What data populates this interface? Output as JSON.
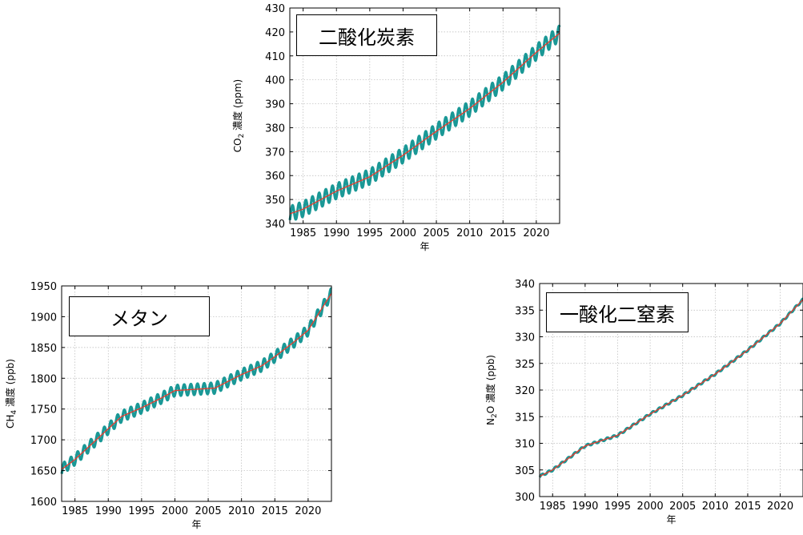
{
  "colors": {
    "observation": "#1a9896",
    "trend": "#e8392c"
  },
  "chart_data": [
    {
      "id": "co2",
      "type": "line",
      "title": "二酸化炭素",
      "xlabel": "年",
      "ylabel_main": "CO",
      "ylabel_sub": "2",
      "ylabel_rest": " 濃度 (ppm)",
      "xlim": [
        1983,
        2023.5
      ],
      "ylim": [
        340,
        430
      ],
      "xticks": [
        1985,
        1990,
        1995,
        2000,
        2005,
        2010,
        2015,
        2020
      ],
      "yticks": [
        340,
        350,
        360,
        370,
        380,
        390,
        400,
        410,
        420,
        430
      ],
      "grid": true,
      "seasonal_amplitude": 3.2,
      "series": [
        {
          "role": "trend",
          "x": [
            1983,
            1985,
            1990,
            1995,
            2000,
            2005,
            2010,
            2015,
            2020,
            2023.5
          ],
          "y": [
            344.0,
            346.0,
            353.5,
            359.5,
            368.5,
            378.5,
            388.0,
            399.0,
            411.5,
            419.5
          ]
        }
      ]
    },
    {
      "id": "ch4",
      "type": "line",
      "title": "メタン",
      "xlabel": "年",
      "ylabel_main": "CH",
      "ylabel_sub": "4",
      "ylabel_rest": " 濃度 (ppb)",
      "xlim": [
        1983,
        2023.5
      ],
      "ylim": [
        1600,
        1950
      ],
      "xticks": [
        1985,
        1990,
        1995,
        2000,
        2005,
        2010,
        2015,
        2020
      ],
      "yticks": [
        1600,
        1650,
        1700,
        1750,
        1800,
        1850,
        1900,
        1950
      ],
      "grid": true,
      "seasonal_amplitude": 9,
      "series": [
        {
          "role": "trend",
          "x": [
            1983,
            1985,
            1988,
            1990,
            1992,
            1995,
            1998,
            2000,
            2003,
            2006,
            2008,
            2010,
            2013,
            2015,
            2018,
            2020,
            2023.5
          ],
          "y": [
            1652,
            1668,
            1698,
            1718,
            1738,
            1752,
            1768,
            1780,
            1782,
            1784,
            1795,
            1806,
            1820,
            1835,
            1860,
            1878,
            1938
          ]
        }
      ]
    },
    {
      "id": "n2o",
      "type": "line",
      "title": "一酸化二窒素",
      "xlabel": "年",
      "ylabel_main": "N",
      "ylabel_sub": "2",
      "ylabel_rest": "O 濃度 (ppb)",
      "xlim": [
        1983,
        2023.5
      ],
      "ylim": [
        300,
        340
      ],
      "xticks": [
        1985,
        1990,
        1995,
        2000,
        2005,
        2010,
        2015,
        2020
      ],
      "yticks": [
        300,
        305,
        310,
        315,
        320,
        325,
        330,
        335,
        340
      ],
      "grid": true,
      "seasonal_amplitude": 0.2,
      "series": [
        {
          "role": "trend",
          "x": [
            1983,
            1985,
            1990,
            1995,
            2000,
            2005,
            2010,
            2015,
            2020,
            2023.5
          ],
          "y": [
            303.8,
            305.0,
            309.5,
            311.5,
            315.5,
            319.0,
            323.0,
            327.5,
            332.5,
            337.0
          ]
        }
      ]
    }
  ]
}
